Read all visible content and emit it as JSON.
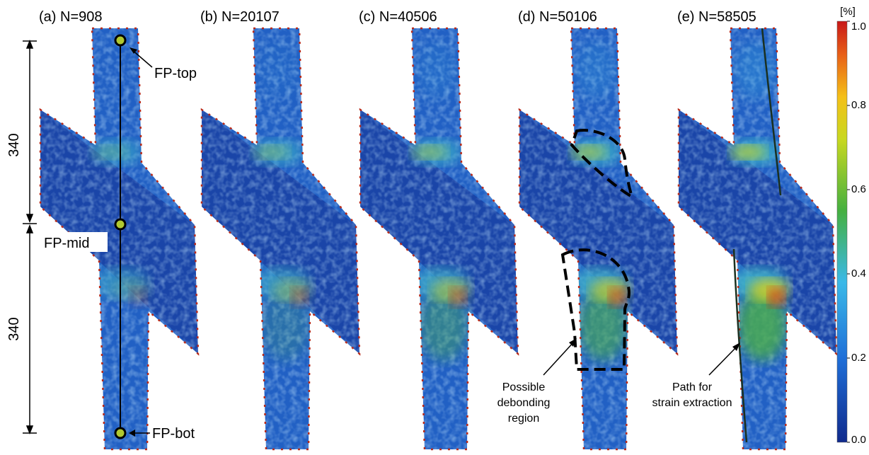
{
  "panels": [
    {
      "label": "(a) N=908"
    },
    {
      "label": "(b) N=20107"
    },
    {
      "label": "(c) N=40506"
    },
    {
      "label": "(d) N=50106"
    },
    {
      "label": "(e) N=58505"
    }
  ],
  "dimensions": [
    340,
    340
  ],
  "points": [
    "FP-top",
    "FP-mid",
    "FP-bot"
  ],
  "annotations": {
    "debonding": [
      "Possible",
      "debonding",
      "region"
    ],
    "path": [
      "Path for",
      "strain extraction"
    ]
  },
  "colorbar": {
    "unit": "[%]",
    "ticks": [
      {
        "value": 0,
        "label": "0.0"
      },
      {
        "value": 0.2,
        "label": "0.2"
      },
      {
        "value": 0.4,
        "label": "0.4"
      },
      {
        "value": 0.6,
        "label": "0.6"
      },
      {
        "value": 0.8,
        "label": "0.8"
      },
      {
        "value": 1,
        "label": "1.0"
      }
    ]
  }
}
